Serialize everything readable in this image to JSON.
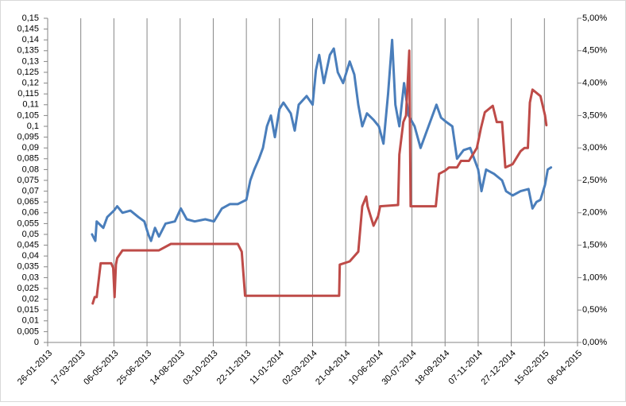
{
  "chart_data": {
    "type": "line",
    "xlim": [
      "2013-01-26",
      "2015-04-06"
    ],
    "xticks": [
      {
        "value": "2013-01-26",
        "label": "26-01-2013"
      },
      {
        "value": "2013-03-17",
        "label": "17-03-2013"
      },
      {
        "value": "2013-05-06",
        "label": "06-05-2013"
      },
      {
        "value": "2013-06-25",
        "label": "25-06-2013"
      },
      {
        "value": "2013-08-14",
        "label": "14-08-2013"
      },
      {
        "value": "2013-10-03",
        "label": "03-10-2013"
      },
      {
        "value": "2013-11-22",
        "label": "22-11-2013"
      },
      {
        "value": "2014-01-11",
        "label": "11-01-2014"
      },
      {
        "value": "2014-03-02",
        "label": "02-03-2014"
      },
      {
        "value": "2014-04-21",
        "label": "21-04-2014"
      },
      {
        "value": "2014-06-10",
        "label": "10-06-2014"
      },
      {
        "value": "2014-07-30",
        "label": "30-07-2014"
      },
      {
        "value": "2014-09-18",
        "label": "18-09-2014"
      },
      {
        "value": "2014-11-07",
        "label": "07-11-2014"
      },
      {
        "value": "2014-12-27",
        "label": "27-12-2014"
      },
      {
        "value": "2015-02-15",
        "label": "15-02-2015"
      },
      {
        "value": "2015-04-06",
        "label": "06-04-2015"
      }
    ],
    "ylim": [
      0,
      0.15
    ],
    "yticks": [
      0,
      {
        "value": 0.005,
        "label": "0,005"
      },
      {
        "value": 0.01,
        "label": "0,01"
      },
      {
        "value": 0.015,
        "label": "0,015"
      },
      {
        "value": 0.02,
        "label": "0,02"
      },
      {
        "value": 0.025,
        "label": "0,025"
      },
      {
        "value": 0.03,
        "label": "0,03"
      },
      {
        "value": 0.035,
        "label": "0,035"
      },
      {
        "value": 0.04,
        "label": "0,04"
      },
      {
        "value": 0.045,
        "label": "0,045"
      },
      {
        "value": 0.05,
        "label": "0,05"
      },
      {
        "value": 0.055,
        "label": "0,055"
      },
      {
        "value": 0.06,
        "label": "0,06"
      },
      {
        "value": 0.065,
        "label": "0,065"
      },
      {
        "value": 0.07,
        "label": "0,07"
      },
      {
        "value": 0.075,
        "label": "0,075"
      },
      {
        "value": 0.08,
        "label": "0,08"
      },
      {
        "value": 0.085,
        "label": "0,085"
      },
      {
        "value": 0.09,
        "label": "0,09"
      },
      {
        "value": 0.095,
        "label": "0,095"
      },
      {
        "value": 0.1,
        "label": "0,1"
      },
      {
        "value": 0.105,
        "label": "0,105"
      },
      {
        "value": 0.11,
        "label": "0,11"
      },
      {
        "value": 0.115,
        "label": "0,115"
      },
      {
        "value": 0.12,
        "label": "0,12"
      },
      {
        "value": 0.125,
        "label": "0,125"
      },
      {
        "value": 0.13,
        "label": "0,13"
      },
      {
        "value": 0.135,
        "label": "0,135"
      },
      {
        "value": 0.14,
        "label": "0,14"
      },
      {
        "value": 0.145,
        "label": "0,145"
      },
      {
        "value": 0.15,
        "label": "0,15"
      }
    ],
    "y2lim": [
      0,
      5
    ],
    "y2ticks": [
      {
        "value": 0,
        "label": "0,00%"
      },
      {
        "value": 0.5,
        "label": "0,50%"
      },
      {
        "value": 1,
        "label": "1,00%"
      },
      {
        "value": 1.5,
        "label": "1,50%"
      },
      {
        "value": 2,
        "label": "2,00%"
      },
      {
        "value": 2.5,
        "label": "2,50%"
      },
      {
        "value": 3,
        "label": "3,00%"
      },
      {
        "value": 3.5,
        "label": "3,50%"
      },
      {
        "value": 4,
        "label": "4,00%"
      },
      {
        "value": 4.5,
        "label": "4,50%"
      },
      {
        "value": 5,
        "label": "5,00%"
      }
    ],
    "grid": "x",
    "series": [
      {
        "color": "#4a7ebb",
        "axis": "y",
        "x": [
          "2013-04-03",
          "2013-04-08",
          "2013-04-10",
          "2013-04-20",
          "2013-04-26",
          "2013-05-06",
          "2013-05-11",
          "2013-05-19",
          "2013-05-31",
          "2013-06-12",
          "2013-06-21",
          "2013-06-27",
          "2013-07-01",
          "2013-07-07",
          "2013-07-13",
          "2013-07-23",
          "2013-08-06",
          "2013-08-15",
          "2013-08-24",
          "2013-09-05",
          "2013-09-21",
          "2013-10-04",
          "2013-10-16",
          "2013-10-28",
          "2013-11-09",
          "2013-11-22",
          "2013-11-28",
          "2013-12-04",
          "2013-12-11",
          "2013-12-17",
          "2013-12-23",
          "2013-12-29",
          "2014-01-04",
          "2014-01-11",
          "2014-01-17",
          "2014-01-28",
          "2014-02-03",
          "2014-02-09",
          "2014-02-21",
          "2014-03-02",
          "2014-03-07",
          "2014-03-12",
          "2014-03-19",
          "2014-03-28",
          "2014-04-03",
          "2014-04-09",
          "2014-04-17",
          "2014-04-27",
          "2014-05-04",
          "2014-05-10",
          "2014-05-16",
          "2014-05-23",
          "2014-06-02",
          "2014-06-10",
          "2014-06-17",
          "2014-06-24",
          "2014-06-30",
          "2014-07-05",
          "2014-07-11",
          "2014-07-18",
          "2014-07-25",
          "2014-08-03",
          "2014-08-12",
          "2014-08-24",
          "2014-09-05",
          "2014-09-12",
          "2014-09-20",
          "2014-09-29",
          "2014-10-06",
          "2014-10-16",
          "2014-10-26",
          "2014-11-01",
          "2014-11-07",
          "2014-11-12",
          "2014-11-19",
          "2014-12-01",
          "2014-12-13",
          "2014-12-19",
          "2014-12-29",
          "2015-01-10",
          "2015-01-22",
          "2015-01-28",
          "2015-02-03",
          "2015-02-09",
          "2015-02-16",
          "2015-02-20",
          "2015-02-25"
        ],
        "values": [
          0.05,
          0.047,
          0.056,
          0.053,
          0.058,
          0.061,
          0.063,
          0.06,
          0.061,
          0.058,
          0.056,
          0.05,
          0.047,
          0.053,
          0.049,
          0.055,
          0.056,
          0.062,
          0.057,
          0.056,
          0.057,
          0.056,
          0.062,
          0.064,
          0.064,
          0.066,
          0.075,
          0.08,
          0.085,
          0.09,
          0.1,
          0.105,
          0.095,
          0.108,
          0.111,
          0.106,
          0.098,
          0.11,
          0.114,
          0.11,
          0.126,
          0.133,
          0.12,
          0.133,
          0.136,
          0.125,
          0.12,
          0.13,
          0.124,
          0.11,
          0.1,
          0.106,
          0.103,
          0.1,
          0.092,
          0.115,
          0.14,
          0.11,
          0.1,
          0.12,
          0.105,
          0.1,
          0.09,
          0.1,
          0.11,
          0.104,
          0.102,
          0.1,
          0.085,
          0.089,
          0.09,
          0.085,
          0.08,
          0.07,
          0.08,
          0.078,
          0.075,
          0.07,
          0.068,
          0.07,
          0.071,
          0.062,
          0.065,
          0.066,
          0.073,
          0.08,
          0.081
        ]
      },
      {
        "color": "#be4b48",
        "axis": "y2",
        "x": [
          "2013-04-04",
          "2013-04-07",
          "2013-04-10",
          "2013-04-16",
          "2013-04-20",
          "2013-05-02",
          "2013-05-05",
          "2013-05-07",
          "2013-05-09",
          "2013-05-11",
          "2013-05-19",
          "2013-07-13",
          "2013-07-31",
          "2013-11-09",
          "2013-11-15",
          "2013-11-20",
          "2014-04-11",
          "2014-04-12",
          "2014-04-27",
          "2014-05-10",
          "2014-05-16",
          "2014-05-22",
          "2014-05-24",
          "2014-06-02",
          "2014-06-09",
          "2014-06-12",
          "2014-07-09",
          "2014-07-11",
          "2014-07-17",
          "2014-07-21",
          "2014-07-26",
          "2014-07-28",
          "2014-09-04",
          "2014-09-09",
          "2014-09-18",
          "2014-09-24",
          "2014-10-06",
          "2014-10-12",
          "2014-10-24",
          "2014-11-05",
          "2014-11-11",
          "2014-11-17",
          "2014-11-29",
          "2014-12-05",
          "2014-12-13",
          "2014-12-18",
          "2014-12-29",
          "2015-01-10",
          "2015-01-16",
          "2015-01-21",
          "2015-01-24",
          "2015-01-28",
          "2015-02-09",
          "2015-02-16",
          "2015-02-18"
        ],
        "values": [
          0.6,
          0.7,
          0.7,
          1.22,
          1.22,
          1.22,
          1.15,
          0.7,
          1.2,
          1.3,
          1.42,
          1.42,
          1.52,
          1.52,
          1.4,
          0.72,
          0.72,
          1.2,
          1.25,
          1.4,
          2.1,
          2.25,
          2.1,
          1.8,
          1.95,
          2.1,
          2.12,
          2.9,
          3.4,
          3.5,
          4.5,
          2.1,
          2.1,
          2.6,
          2.65,
          2.7,
          2.7,
          2.8,
          2.8,
          3.0,
          3.3,
          3.55,
          3.65,
          3.4,
          3.4,
          2.7,
          2.75,
          2.95,
          3.0,
          3.0,
          3.7,
          3.9,
          3.8,
          3.5,
          3.35
        ]
      }
    ]
  }
}
